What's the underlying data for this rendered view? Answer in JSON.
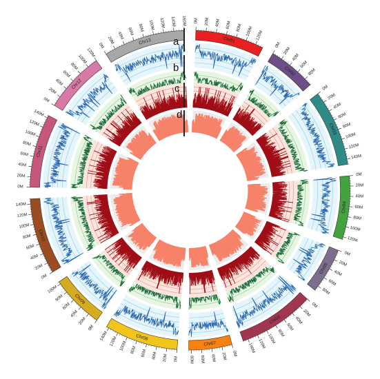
{
  "chromosomes": [
    {
      "name": "Chr01",
      "length_mb": 135,
      "color": "#e8201f",
      "ticks": [
        "0M",
        "20M",
        "40M",
        "60M",
        "80M",
        "100M",
        "120M"
      ]
    },
    {
      "name": "Chr02",
      "length_mb": 95,
      "color": "#6b4f86",
      "ticks": [
        "0M",
        "20M",
        "40M",
        "60M",
        "80M"
      ]
    },
    {
      "name": "Chr03",
      "length_mb": 150,
      "color": "#2f8b88",
      "ticks": [
        "0M",
        "20M",
        "40M",
        "60M",
        "80M",
        "100M",
        "120M",
        "140M"
      ]
    },
    {
      "name": "Chr04",
      "length_mb": 125,
      "color": "#43a33f",
      "ticks": [
        "0M",
        "20M",
        "40M",
        "60M",
        "80M",
        "100M",
        "120M"
      ]
    },
    {
      "name": "Chr05",
      "length_mb": 90,
      "color": "#7d6e8b",
      "ticks": [
        "0M",
        "20M",
        "40M",
        "60M",
        "80M"
      ]
    },
    {
      "name": "Chr06",
      "length_mb": 150,
      "color": "#a23550",
      "ticks": [
        "0M",
        "20M",
        "40M",
        "60M",
        "80M",
        "100M",
        "120M",
        "140M"
      ]
    },
    {
      "name": "Chr07",
      "length_mb": 85,
      "color": "#f7820f",
      "ticks": [
        "0M",
        "20M",
        "40M",
        "60M",
        "80M"
      ]
    },
    {
      "name": "Chr08",
      "length_mb": 145,
      "color": "#f2c51b",
      "ticks": [
        "0M",
        "20M",
        "40M",
        "60M",
        "80M",
        "100M",
        "120M",
        "140M"
      ]
    },
    {
      "name": "Chr09",
      "length_mb": 105,
      "color": "#d6ab1f",
      "ticks": [
        "0M",
        "20M",
        "40M",
        "60M",
        "80M",
        "100M"
      ]
    },
    {
      "name": "Chr10",
      "length_mb": 150,
      "color": "#9b4c21",
      "ticks": [
        "0M",
        "20M",
        "40M",
        "60M",
        "80M",
        "100M",
        "120M",
        "140M"
      ]
    },
    {
      "name": "Chr11",
      "length_mb": 145,
      "color": "#c7577b",
      "ticks": [
        "0M",
        "20M",
        "40M",
        "60M",
        "80M",
        "100M",
        "120M",
        "140M"
      ]
    },
    {
      "name": "Chr12",
      "length_mb": 120,
      "color": "#d879a8",
      "ticks": [
        "0M",
        "20M",
        "40M",
        "60M",
        "80M",
        "100M",
        "120M"
      ]
    },
    {
      "name": "Chr13",
      "length_mb": 160,
      "color": "#a7a7a7",
      "ticks": [
        "0M",
        "20M",
        "40M",
        "60M",
        "80M",
        "100M",
        "120M",
        "140M",
        "160M"
      ]
    }
  ],
  "tracks": [
    {
      "label": "a",
      "line_color": "#2a66ad",
      "bg_color": "#e6f5fb",
      "grid_color": "#8fd3ec",
      "style": "line"
    },
    {
      "label": "b",
      "line_color": "#1d6b3a",
      "bg_color": "#e7f5e3",
      "grid_color": "#94d08b",
      "style": "line"
    },
    {
      "label": "c",
      "line_color": "#9f0d16",
      "bg_color": "#fbe5de",
      "grid_color": "#ef9c85",
      "style": "bars"
    },
    {
      "label": "d",
      "line_color": "#f7826a",
      "bg_color": "#ececec",
      "grid_color": "#ececec",
      "style": "area"
    }
  ]
}
